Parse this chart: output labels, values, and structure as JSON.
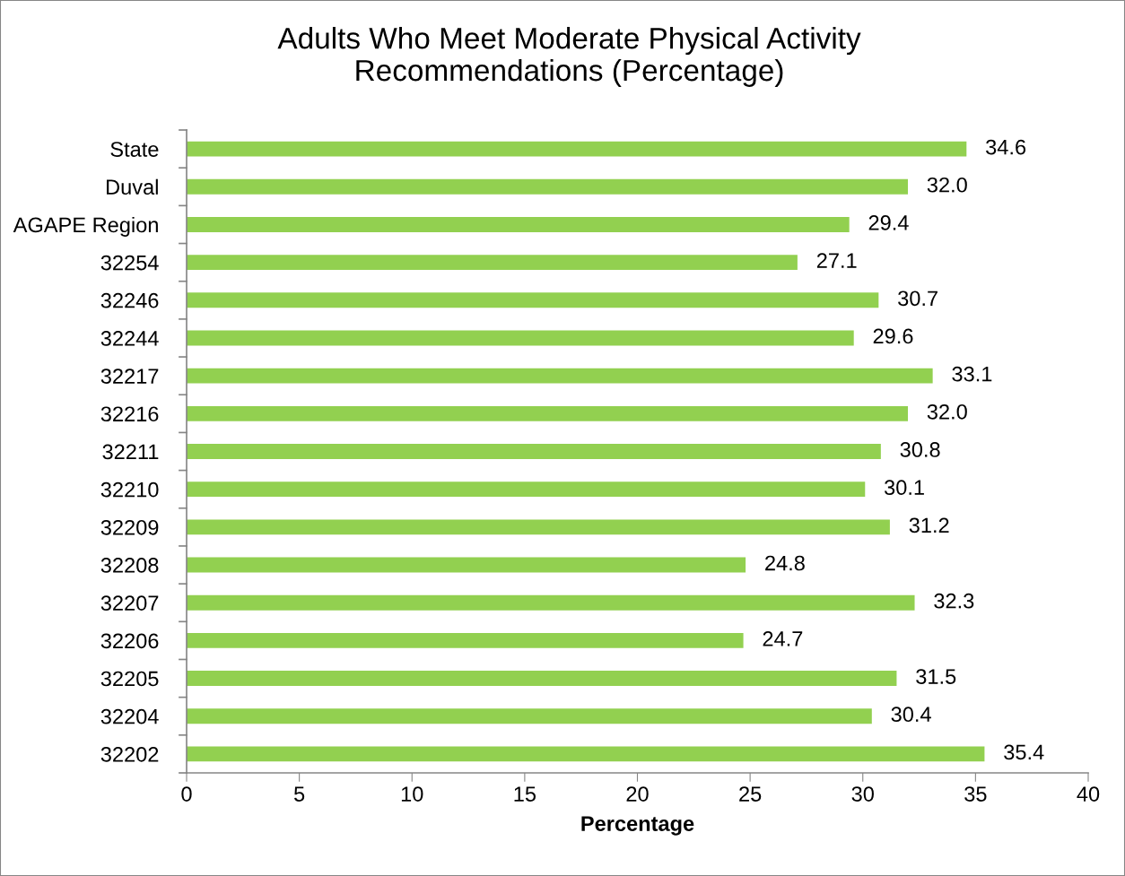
{
  "chart_data": {
    "type": "bar",
    "orientation": "horizontal",
    "title": "Adults Who Meet Moderate Physical Activity\nRecommendations (Percentage)",
    "xlabel": "Percentage",
    "categories": [
      "State",
      "Duval",
      "AGAPE Region",
      "32254",
      "32246",
      "32244",
      "32217",
      "32216",
      "32211",
      "32210",
      "32209",
      "32208",
      "32207",
      "32206",
      "32205",
      "32204",
      "32202"
    ],
    "values": [
      34.6,
      32.0,
      29.4,
      27.1,
      30.7,
      29.6,
      33.1,
      32.0,
      30.8,
      30.1,
      31.2,
      24.8,
      32.3,
      24.7,
      31.5,
      30.4,
      35.4
    ],
    "value_labels": [
      "34.6",
      "32.0",
      "29.4",
      "27.1",
      "30.7",
      "29.6",
      "33.1",
      "32.0",
      "30.8",
      "30.1",
      "31.2",
      "24.8",
      "32.3",
      "24.7",
      "31.5",
      "30.4",
      "35.4"
    ],
    "color": "#92d050",
    "xlim": [
      0,
      40
    ],
    "xticks": [
      0,
      5,
      10,
      15,
      20,
      25,
      30,
      35,
      40
    ],
    "grid": false
  }
}
